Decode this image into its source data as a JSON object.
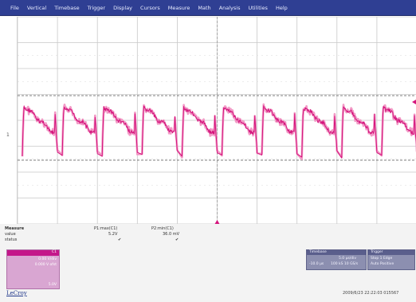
{
  "menu": {
    "items": [
      "File",
      "Vertical",
      "Timebase",
      "Trigger",
      "Display",
      "Cursors",
      "Measure",
      "Math",
      "Analysis",
      "Utilities",
      "Help"
    ]
  },
  "screen": {
    "channel_marker": "1",
    "waveform_color": "#d4147c",
    "trace_shadow_color": "#f29ac6",
    "grid_color": "#c8c8c8",
    "level_line_color": "#555555",
    "center_axis_color": "#9a9a9a",
    "trigger_marker_color": "#d4147c",
    "pulse_count": 10
  },
  "measure": {
    "label_measure": "Measure",
    "label_value": "value",
    "label_status": "status",
    "p1_header": "P1:max(C1)",
    "p2_header": "P2:min(C1)",
    "p1_value": "5.2V",
    "p2_value": "36.0 mV",
    "p1_status": "✔",
    "p2_status": "✔"
  },
  "channel_panel": {
    "lines": [
      "C1",
      "0.00 V/div",
      "0.000 V ofst",
      "",
      "",
      "",
      "5.0V"
    ]
  },
  "brand": "LeCroy",
  "timebase_box": {
    "title": "Timebase",
    "line1": "5.0 μs/div",
    "line2": "100 kS   10 GS/s",
    "left1": "",
    "left2": "-10.0 μs"
  },
  "trigger_box": {
    "title": "Trigger",
    "line1": "Stop    1 Edge",
    "line2": "Auto    Positive"
  },
  "timestamp": "2009/6/23 22:22:03 015567"
}
